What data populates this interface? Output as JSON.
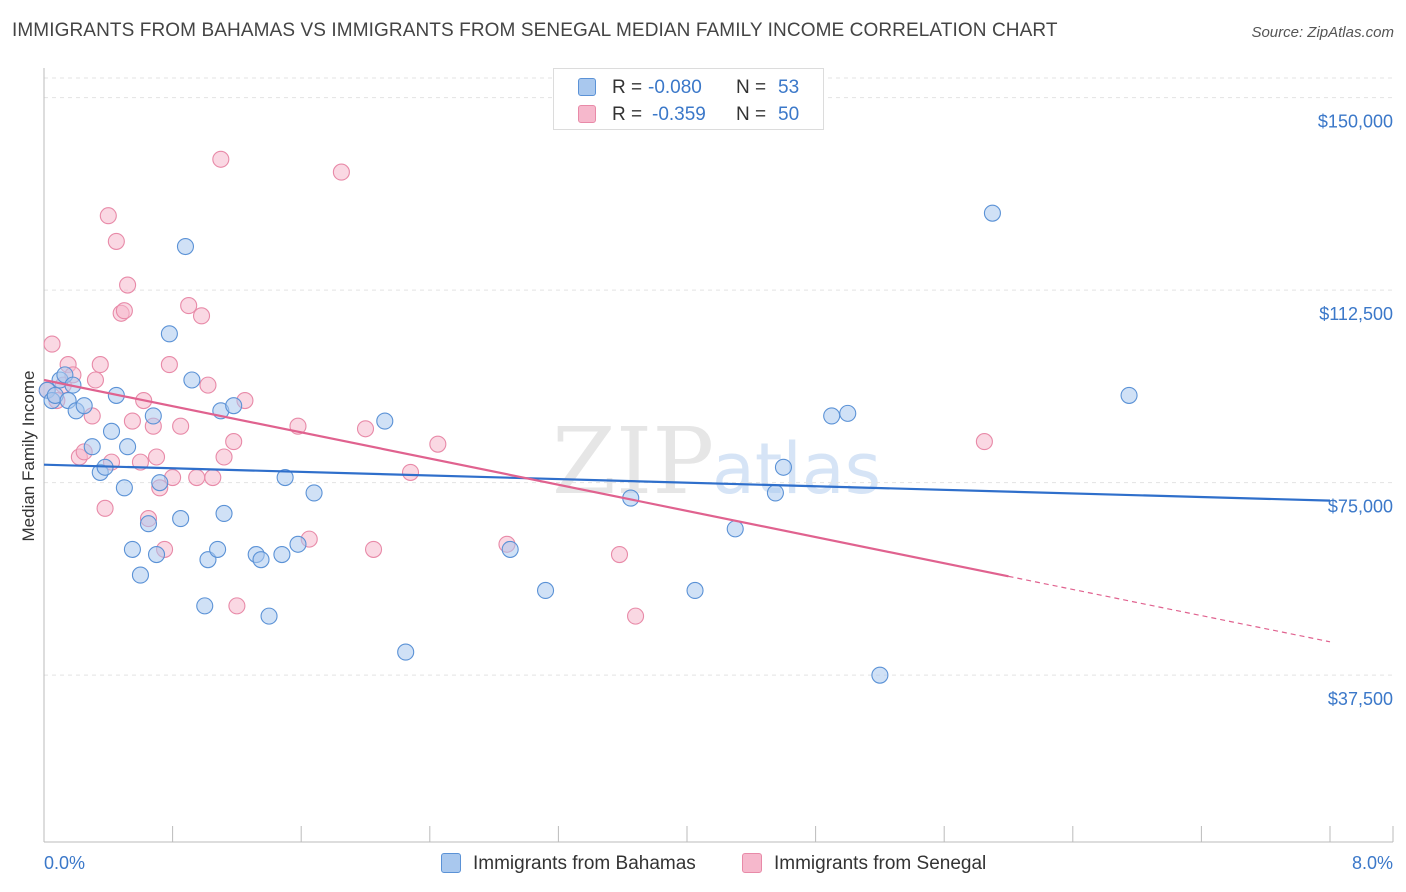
{
  "title": "IMMIGRANTS FROM BAHAMAS VS IMMIGRANTS FROM SENEGAL MEDIAN FAMILY INCOME CORRELATION CHART",
  "source": "Source: ZipAtlas.com",
  "watermark": {
    "zip": "ZIP",
    "atlas": "atlas"
  },
  "legend": {
    "r_label": "R =",
    "n_label": "N =",
    "bahamas": {
      "r": "-0.080",
      "n": "53"
    },
    "senegal": {
      "r": "-0.359",
      "n": "50"
    }
  },
  "colors": {
    "bahamas_fill": "#a9c8ee",
    "bahamas_stroke": "#5b92d6",
    "bahamas_line": "#2f6fcb",
    "senegal_fill": "#f6b8cc",
    "senegal_stroke": "#e88aa8",
    "senegal_line": "#e0628f",
    "axis_text": "#3b78c9",
    "grid": "#e3e3e3"
  },
  "chart_data": {
    "type": "scatter",
    "title": "IMMIGRANTS FROM BAHAMAS VS IMMIGRANTS FROM SENEGAL MEDIAN FAMILY INCOME CORRELATION CHART",
    "xlabel": "",
    "ylabel": "Median Family Income",
    "xlim": [
      0,
      8
    ],
    "ylim": [
      5000,
      155000
    ],
    "x_tick_labels": [
      "0.0%",
      "8.0%"
    ],
    "y_ticks": [
      37500,
      75000,
      112500,
      150000
    ],
    "y_tick_labels": [
      "$37,500",
      "$75,000",
      "$112,500",
      "$150,000"
    ],
    "legend_position": "bottom",
    "series": [
      {
        "name": "Immigrants from Bahamas",
        "r": -0.08,
        "n": 53,
        "trend": {
          "x": [
            0,
            8
          ],
          "y": [
            78500,
            71500
          ],
          "dashed_from": null
        },
        "points": [
          [
            0.02,
            93000
          ],
          [
            0.05,
            91000
          ],
          [
            0.07,
            92000
          ],
          [
            0.1,
            95000
          ],
          [
            0.13,
            96000
          ],
          [
            0.15,
            91000
          ],
          [
            0.18,
            94000
          ],
          [
            0.2,
            89000
          ],
          [
            0.25,
            90000
          ],
          [
            0.3,
            82000
          ],
          [
            0.35,
            77000
          ],
          [
            0.38,
            78000
          ],
          [
            0.42,
            85000
          ],
          [
            0.45,
            92000
          ],
          [
            0.5,
            74000
          ],
          [
            0.52,
            82000
          ],
          [
            0.55,
            62000
          ],
          [
            0.6,
            57000
          ],
          [
            0.65,
            67000
          ],
          [
            0.68,
            88000
          ],
          [
            0.7,
            61000
          ],
          [
            0.72,
            75000
          ],
          [
            0.78,
            104000
          ],
          [
            0.85,
            68000
          ],
          [
            0.88,
            121000
          ],
          [
            0.92,
            95000
          ],
          [
            1.0,
            51000
          ],
          [
            1.02,
            60000
          ],
          [
            1.08,
            62000
          ],
          [
            1.1,
            89000
          ],
          [
            1.12,
            69000
          ],
          [
            1.18,
            90000
          ],
          [
            1.32,
            61000
          ],
          [
            1.35,
            60000
          ],
          [
            1.4,
            49000
          ],
          [
            1.48,
            61000
          ],
          [
            1.5,
            76000
          ],
          [
            1.58,
            63000
          ],
          [
            1.68,
            73000
          ],
          [
            2.12,
            87000
          ],
          [
            2.25,
            42000
          ],
          [
            2.9,
            62000
          ],
          [
            3.12,
            54000
          ],
          [
            3.65,
            72000
          ],
          [
            4.05,
            54000
          ],
          [
            4.3,
            66000
          ],
          [
            4.55,
            73000
          ],
          [
            4.6,
            78000
          ],
          [
            4.9,
            88000
          ],
          [
            5.0,
            88500
          ],
          [
            5.2,
            37500
          ],
          [
            5.9,
            127500
          ],
          [
            6.75,
            92000
          ]
        ]
      },
      {
        "name": "Immigrants from Senegal",
        "r": -0.359,
        "n": 50,
        "trend": {
          "x": [
            0,
            8
          ],
          "y": [
            95000,
            44000
          ],
          "dashed_from": 6.0
        },
        "points": [
          [
            0.02,
            93000
          ],
          [
            0.05,
            102000
          ],
          [
            0.08,
            91000
          ],
          [
            0.12,
            94000
          ],
          [
            0.15,
            98000
          ],
          [
            0.18,
            96000
          ],
          [
            0.22,
            80000
          ],
          [
            0.25,
            81000
          ],
          [
            0.3,
            88000
          ],
          [
            0.32,
            95000
          ],
          [
            0.35,
            98000
          ],
          [
            0.38,
            70000
          ],
          [
            0.4,
            127000
          ],
          [
            0.42,
            79000
          ],
          [
            0.45,
            122000
          ],
          [
            0.48,
            108000
          ],
          [
            0.5,
            108500
          ],
          [
            0.52,
            113500
          ],
          [
            0.55,
            87000
          ],
          [
            0.6,
            79000
          ],
          [
            0.62,
            91000
          ],
          [
            0.65,
            68000
          ],
          [
            0.68,
            86000
          ],
          [
            0.7,
            80000
          ],
          [
            0.72,
            74000
          ],
          [
            0.75,
            62000
          ],
          [
            0.78,
            98000
          ],
          [
            0.8,
            76000
          ],
          [
            0.85,
            86000
          ],
          [
            0.9,
            109500
          ],
          [
            0.95,
            76000
          ],
          [
            0.98,
            107500
          ],
          [
            1.02,
            94000
          ],
          [
            1.05,
            76000
          ],
          [
            1.1,
            138000
          ],
          [
            1.12,
            80000
          ],
          [
            1.18,
            83000
          ],
          [
            1.2,
            51000
          ],
          [
            1.25,
            91000
          ],
          [
            1.58,
            86000
          ],
          [
            1.65,
            64000
          ],
          [
            1.85,
            135500
          ],
          [
            2.0,
            85500
          ],
          [
            2.05,
            62000
          ],
          [
            2.28,
            77000
          ],
          [
            2.45,
            82500
          ],
          [
            2.88,
            63000
          ],
          [
            3.58,
            61000
          ],
          [
            3.68,
            49000
          ],
          [
            5.85,
            83000
          ]
        ]
      }
    ]
  },
  "bottom_legend": {
    "bahamas": "Immigrants from Bahamas",
    "senegal": "Immigrants from Senegal"
  }
}
